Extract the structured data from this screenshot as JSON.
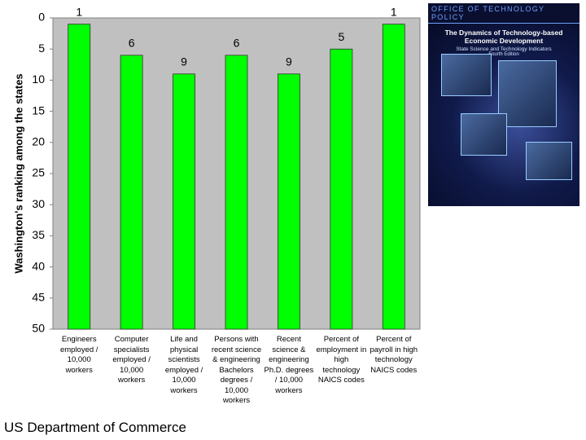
{
  "chart_data": {
    "type": "bar",
    "y_label": "Washington's ranking among the states",
    "categories": [
      "Engineers employed / 10,000 workers",
      "Computer specialists employed / 10,000 workers",
      "Life and physical scientists employed / 10,000 workers",
      "Persons with recent science & engineering Bachelors degrees / 10,000 workers",
      "Recent science & engineering Ph.D. degrees / 10,000 workers",
      "Percent of employment in high technology NAICS codes",
      "Percent of payroll in high technology NAICS codes"
    ],
    "values": [
      1,
      6,
      9,
      6,
      9,
      5,
      1
    ],
    "color": "#00ff00",
    "ylim": [
      0,
      50
    ],
    "yticks": [
      0,
      5,
      10,
      15,
      20,
      25,
      30,
      35,
      40,
      45,
      50
    ],
    "y_inverted": true,
    "grid": false
  },
  "cover": {
    "publisher": "OFFICE OF TECHNOLOGY POLICY",
    "title": "The Dynamics of Technology-based Economic Development",
    "subtitle": "State Science and Technology Indicators",
    "edition": "Fourth Edition"
  },
  "footer": "US Department of Commerce"
}
